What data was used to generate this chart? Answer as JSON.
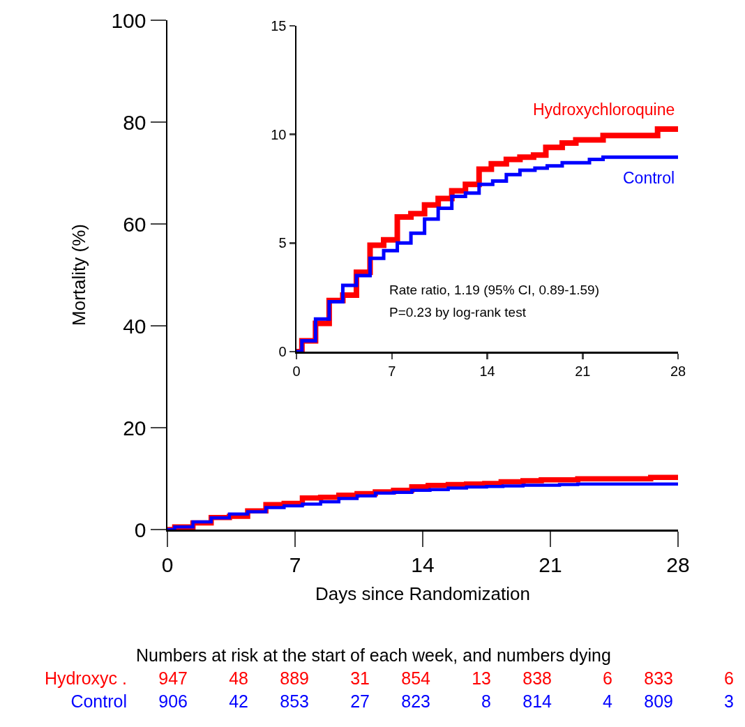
{
  "chart_data": [
    {
      "type": "step",
      "xlabel": "Days since Randomization",
      "ylabel": "Mortality (%)",
      "xlim": [
        0,
        28
      ],
      "xticks": [
        0,
        7,
        14,
        21,
        28
      ],
      "ylim": [
        0,
        100
      ],
      "yticks": [
        0,
        20,
        40,
        60,
        80,
        100
      ],
      "series": [
        {
          "color": "#ff0000",
          "x": [
            0,
            0.4,
            1.4,
            2.4,
            3.4,
            4.4,
            5.4,
            6.4,
            7.4,
            8.4,
            9.4,
            10.4,
            11.4,
            12.4,
            13.4,
            14.3,
            15.4,
            16.4,
            17.4,
            18.3,
            19.5,
            20.5,
            22.5,
            26.5,
            28
          ],
          "values": [
            0,
            0.5,
            1.3,
            2.35,
            2.6,
            3.65,
            4.9,
            5.15,
            6.2,
            6.35,
            6.75,
            7.05,
            7.4,
            7.7,
            8.4,
            8.65,
            8.85,
            8.95,
            9.05,
            9.4,
            9.6,
            9.75,
            9.95,
            10.25,
            10.25
          ]
        },
        {
          "color": "#0000ff",
          "x": [
            0,
            0.4,
            1.4,
            2.4,
            3.4,
            4.4,
            5.4,
            6.4,
            7.4,
            8.4,
            9.4,
            10.4,
            11.4,
            12.4,
            13.4,
            14.4,
            15.4,
            16.4,
            17.5,
            18.4,
            19.5,
            21.5,
            22.5,
            28
          ],
          "values": [
            0,
            0.5,
            1.5,
            2.3,
            3.05,
            3.5,
            4.3,
            4.65,
            5.0,
            5.45,
            6.1,
            6.6,
            7.15,
            7.3,
            7.7,
            7.85,
            8.15,
            8.35,
            8.45,
            8.55,
            8.7,
            8.85,
            8.95,
            8.95
          ]
        }
      ],
      "annotations": [
        "Numbers at risk at the start of each week, and numbers dying",
        "Hydroxyc .  947  48  889  31  854  13  838  6  833  6",
        "Control  906  42  853  27  823  8  814  4  809  3"
      ]
    },
    {
      "type": "step",
      "xlim": [
        0,
        28
      ],
      "xticks": [
        0,
        7,
        14,
        21,
        28
      ],
      "ylim": [
        0,
        15
      ],
      "yticks": [
        0,
        5,
        10,
        15
      ],
      "series": [
        {
          "name": "Hydroxychloroquine",
          "color": "#ff0000",
          "x": [
            0,
            0.4,
            1.4,
            2.4,
            3.4,
            4.4,
            5.4,
            6.4,
            7.4,
            8.4,
            9.4,
            10.4,
            11.4,
            12.4,
            13.4,
            14.3,
            15.4,
            16.4,
            17.4,
            18.3,
            19.5,
            20.5,
            22.5,
            26.5,
            28
          ],
          "values": [
            0,
            0.5,
            1.3,
            2.35,
            2.6,
            3.65,
            4.9,
            5.15,
            6.2,
            6.35,
            6.75,
            7.05,
            7.4,
            7.7,
            8.4,
            8.65,
            8.85,
            8.95,
            9.05,
            9.4,
            9.6,
            9.75,
            9.95,
            10.25,
            10.25
          ]
        },
        {
          "name": "Control",
          "color": "#0000ff",
          "x": [
            0,
            0.4,
            1.4,
            2.4,
            3.4,
            4.4,
            5.4,
            6.4,
            7.4,
            8.4,
            9.4,
            10.4,
            11.4,
            12.4,
            13.4,
            14.4,
            15.4,
            16.4,
            17.5,
            18.4,
            19.5,
            21.5,
            22.5,
            28
          ],
          "values": [
            0,
            0.5,
            1.5,
            2.3,
            3.05,
            3.5,
            4.3,
            4.65,
            5.0,
            5.45,
            6.1,
            6.6,
            7.15,
            7.3,
            7.7,
            7.85,
            8.15,
            8.35,
            8.45,
            8.55,
            8.7,
            8.85,
            8.95,
            8.95
          ]
        }
      ],
      "annotations": [
        "Rate ratio, 1.19 (95% CI, 0.89-1.59)",
        "P=0.23 by log-rank test"
      ]
    }
  ]
}
